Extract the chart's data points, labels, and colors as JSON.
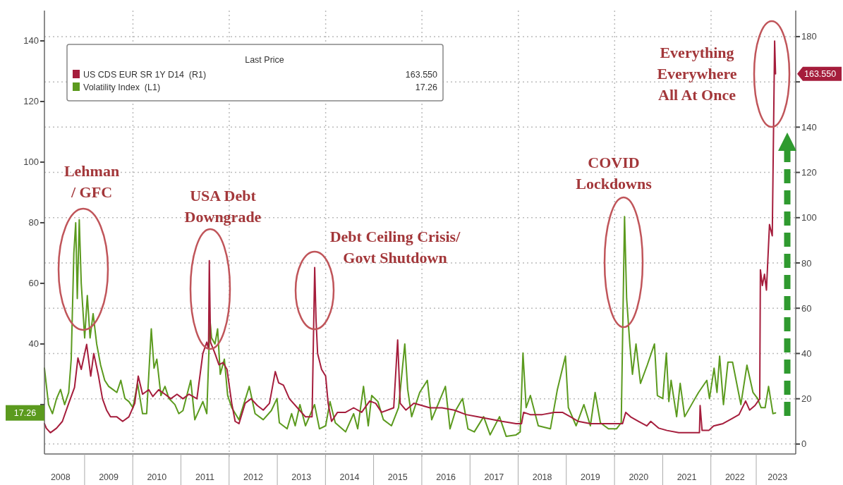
{
  "chart_data": {
    "type": "line",
    "legend_title": "Last Price",
    "legend": "top left",
    "grid": true,
    "xlim": [
      "2008-03-01",
      "2023-10-05"
    ],
    "xticks": [
      {
        "value": "2008-07-01",
        "label": "2008"
      },
      {
        "value": "2009-07-01",
        "label": "2009"
      },
      {
        "value": "2010-01-01",
        "label": null
      },
      {
        "value": "2010-07-01",
        "label": "2010"
      },
      {
        "value": "2011-07-01",
        "label": "2011"
      },
      {
        "value": "2012-01-01",
        "label": null
      },
      {
        "value": "2012-07-01",
        "label": "2012"
      },
      {
        "value": "2013-07-01",
        "label": "2013"
      },
      {
        "value": "2014-01-01",
        "label": null
      },
      {
        "value": "2014-07-01",
        "label": "2014"
      },
      {
        "value": "2015-07-01",
        "label": "2015"
      },
      {
        "value": "2016-01-01",
        "label": null
      },
      {
        "value": "2016-07-01",
        "label": "2016"
      },
      {
        "value": "2017-07-01",
        "label": "2017"
      },
      {
        "value": "2018-01-01",
        "label": null
      },
      {
        "value": "2018-07-01",
        "label": "2018"
      },
      {
        "value": "2019-07-01",
        "label": "2019"
      },
      {
        "value": "2020-01-01",
        "label": null
      },
      {
        "value": "2020-07-01",
        "label": "2020"
      },
      {
        "value": "2021-07-01",
        "label": "2021"
      },
      {
        "value": "2022-01-01",
        "label": null
      },
      {
        "value": "2022-07-01",
        "label": "2022"
      },
      {
        "value": "2023-05-20",
        "label": "2023"
      }
    ],
    "ylim": [
      3.7,
      150
    ],
    "yticks": [
      {
        "value": 20,
        "label": null
      },
      40,
      60,
      80,
      100,
      120,
      140
    ],
    "y2lim": [
      -4.4,
      191.5
    ],
    "y2ticks": [
      0,
      20,
      40,
      60,
      80,
      100,
      120,
      140,
      {
        "value": 160,
        "label": null
      },
      180
    ],
    "annotations": [
      "Lehman\n/ GFC",
      "USA Debt\nDowngrade",
      "Debt Ceiling Crisis/\nGovt Shutdown",
      "COVID\nLockdowns",
      "Everything\nEverywhere\nAll At Once",
      "163.550",
      "17.26"
    ],
    "series": [
      {
        "name": "US CDS EUR SR 1Y D14  (R1)",
        "color": "#a51d3c",
        "axis": "y2",
        "x": [
          "2008-03-01",
          "2008-03-15",
          "2008-04-15",
          "2008-06-01",
          "2008-07-15",
          "2008-09-01",
          "2008-10-15",
          "2008-11-10",
          "2008-12-05",
          "2009-01-15",
          "2009-02-15",
          "2009-03-10",
          "2009-04-15",
          "2009-05-15",
          "2009-06-15",
          "2009-07-15",
          "2009-09-01",
          "2009-10-15",
          "2009-12-01",
          "2010-01-15",
          "2010-02-10",
          "2010-03-15",
          "2010-05-01",
          "2010-06-01",
          "2010-07-15",
          "2010-09-01",
          "2010-10-15",
          "2010-12-01",
          "2011-01-15",
          "2011-03-01",
          "2011-05-01",
          "2011-06-15",
          "2011-07-15",
          "2011-07-28",
          "2011-08-03",
          "2011-08-12",
          "2011-09-15",
          "2011-10-15",
          "2011-11-15",
          "2011-12-15",
          "2012-01-20",
          "2012-02-15",
          "2012-03-15",
          "2012-05-01",
          "2012-06-15",
          "2012-08-01",
          "2012-09-15",
          "2012-11-01",
          "2012-12-15",
          "2013-01-10",
          "2013-02-15",
          "2013-04-01",
          "2013-06-01",
          "2013-08-01",
          "2013-09-20",
          "2013-10-10",
          "2013-10-20",
          "2013-11-01",
          "2013-12-01",
          "2014-01-01",
          "2014-01-20",
          "2014-02-15",
          "2014-04-01",
          "2014-06-01",
          "2014-08-01",
          "2014-10-01",
          "2014-12-01",
          "2015-01-15",
          "2015-03-01",
          "2015-06-01",
          "2015-07-01",
          "2015-07-20",
          "2015-09-01",
          "2015-11-01",
          "2016-01-01",
          "2016-03-01",
          "2016-06-01",
          "2016-09-01",
          "2016-12-01",
          "2017-03-01",
          "2017-06-01",
          "2017-09-01",
          "2017-12-15",
          "2018-01-25",
          "2018-02-10",
          "2018-04-01",
          "2018-07-01",
          "2018-10-01",
          "2018-12-01",
          "2019-02-01",
          "2019-04-01",
          "2019-07-01",
          "2019-10-01",
          "2020-01-01",
          "2020-03-01",
          "2020-03-25",
          "2020-05-01",
          "2020-07-01",
          "2020-09-01",
          "2020-10-01",
          "2020-12-01",
          "2021-02-01",
          "2021-05-01",
          "2021-08-01",
          "2021-10-05",
          "2021-10-10",
          "2021-10-25",
          "2021-12-15",
          "2022-01-20",
          "2022-04-01",
          "2022-06-01",
          "2022-08-01",
          "2022-09-20",
          "2022-10-20",
          "2022-11-30",
          "2023-01-05",
          "2023-01-10",
          "2023-01-25",
          "2023-02-10",
          "2023-02-25",
          "2023-03-20",
          "2023-04-10",
          "2023-04-28",
          "2023-05-05"
        ],
        "values": [
          9,
          7,
          5,
          7,
          10,
          18,
          25,
          38,
          33,
          44,
          30,
          40,
          30,
          20,
          15,
          12,
          12,
          10,
          12,
          18,
          30,
          22,
          24,
          21,
          24,
          22,
          20,
          22,
          20,
          22,
          20,
          40,
          45,
          42,
          81,
          45,
          40,
          35,
          36,
          33,
          18,
          10,
          9,
          18,
          20,
          17,
          15,
          18,
          32,
          27,
          26,
          20,
          16,
          12,
          12,
          78,
          55,
          40,
          33,
          30,
          18,
          10,
          14,
          14,
          16,
          14,
          19,
          18,
          14,
          16,
          46,
          18,
          15,
          18,
          17,
          16,
          16,
          15,
          13,
          12,
          11,
          10,
          9,
          9,
          14,
          13,
          13,
          14,
          14,
          12,
          10,
          9,
          9,
          9,
          9,
          14,
          12,
          10,
          8,
          10,
          7,
          6,
          5,
          5,
          5,
          17,
          6,
          6,
          8,
          9,
          11,
          13,
          19,
          15,
          17,
          20,
          77,
          70,
          75,
          68,
          97,
          92,
          178,
          163.55
        ]
      },
      {
        "name": "Volatility Index  (L1)",
        "color": "#5b9a1e",
        "x": [
          "2008-03-01",
          "2008-04-01",
          "2008-05-01",
          "2008-06-01",
          "2008-07-01",
          "2008-08-01",
          "2008-09-01",
          "2008-09-20",
          "2008-10-10",
          "2008-10-24",
          "2008-11-05",
          "2008-11-20",
          "2008-12-05",
          "2008-12-31",
          "2009-01-20",
          "2009-02-10",
          "2009-03-05",
          "2009-04-01",
          "2009-05-01",
          "2009-06-01",
          "2009-07-01",
          "2009-08-01",
          "2009-09-01",
          "2009-10-01",
          "2009-11-01",
          "2009-12-01",
          "2010-01-01",
          "2010-02-05",
          "2010-03-15",
          "2010-04-15",
          "2010-05-20",
          "2010-06-10",
          "2010-07-01",
          "2010-08-01",
          "2010-09-01",
          "2010-10-01",
          "2010-11-15",
          "2010-12-15",
          "2011-01-15",
          "2011-03-15",
          "2011-04-15",
          "2011-06-15",
          "2011-07-15",
          "2011-08-08",
          "2011-08-20",
          "2011-09-15",
          "2011-10-05",
          "2011-10-25",
          "2011-11-25",
          "2011-12-20",
          "2012-01-20",
          "2012-03-15",
          "2012-06-01",
          "2012-07-15",
          "2012-09-15",
          "2012-11-15",
          "2012-12-28",
          "2013-01-15",
          "2013-03-15",
          "2013-04-18",
          "2013-05-15",
          "2013-06-20",
          "2013-08-01",
          "2013-10-09",
          "2013-11-15",
          "2014-01-01",
          "2014-02-03",
          "2014-03-15",
          "2014-06-01",
          "2014-08-01",
          "2014-09-01",
          "2014-10-15",
          "2014-11-20",
          "2014-12-16",
          "2015-02-01",
          "2015-03-15",
          "2015-05-15",
          "2015-07-08",
          "2015-08-24",
          "2015-09-15",
          "2015-10-15",
          "2015-12-15",
          "2016-02-11",
          "2016-03-15",
          "2016-06-27",
          "2016-08-01",
          "2016-09-12",
          "2016-11-04",
          "2016-12-15",
          "2017-02-01",
          "2017-04-13",
          "2017-06-01",
          "2017-08-11",
          "2017-10-01",
          "2017-12-15",
          "2018-01-15",
          "2018-02-05",
          "2018-03-01",
          "2018-04-02",
          "2018-06-01",
          "2018-09-01",
          "2018-10-24",
          "2018-12-24",
          "2019-01-15",
          "2019-03-15",
          "2019-05-13",
          "2019-07-01",
          "2019-08-06",
          "2019-09-15",
          "2019-11-15",
          "2020-01-15",
          "2020-02-20",
          "2020-03-16",
          "2020-04-01",
          "2020-04-25",
          "2020-05-15",
          "2020-06-11",
          "2020-07-15",
          "2020-09-04",
          "2020-10-29",
          "2020-11-20",
          "2020-12-31",
          "2021-01-27",
          "2021-02-15",
          "2021-03-04",
          "2021-04-15",
          "2021-05-12",
          "2021-06-15",
          "2021-08-19",
          "2021-09-28",
          "2021-11-30",
          "2021-12-20",
          "2022-01-24",
          "2022-02-15",
          "2022-03-07",
          "2022-04-05",
          "2022-05-09",
          "2022-06-13",
          "2022-08-15",
          "2022-09-30",
          "2022-11-15",
          "2022-12-20",
          "2023-01-15",
          "2023-02-15",
          "2023-03-13",
          "2023-04-15",
          "2023-05-05"
        ],
        "values": [
          32,
          20,
          17,
          22,
          25,
          20,
          24,
          35,
          70,
          80,
          55,
          81,
          60,
          42,
          56,
          42,
          50,
          40,
          33,
          28,
          26,
          25,
          24,
          28,
          22,
          21,
          19,
          27,
          17,
          17,
          45,
          32,
          35,
          23,
          26,
          22,
          20,
          17,
          18,
          28,
          15,
          21,
          17,
          48,
          42,
          40,
          45,
          30,
          35,
          23,
          19,
          15,
          26,
          17,
          15,
          18,
          22,
          14,
          12,
          17,
          13,
          20,
          13,
          20,
          12,
          13,
          21,
          14,
          11,
          17,
          12,
          26,
          13,
          23,
          21,
          15,
          13,
          19,
          40,
          25,
          16,
          24,
          28,
          15,
          26,
          12,
          18,
          22,
          12,
          11,
          16,
          10,
          16,
          9.5,
          10,
          11,
          37,
          19,
          23,
          13,
          12,
          25,
          36,
          19,
          13,
          20,
          13,
          24,
          14,
          12,
          12,
          14,
          82,
          55,
          40,
          30,
          40,
          27,
          33,
          40,
          23,
          22,
          37,
          21,
          28,
          16,
          27,
          16,
          21,
          24,
          28,
          22,
          32,
          24,
          36,
          20,
          34,
          34,
          20,
          33,
          24,
          22,
          19,
          19,
          26,
          17,
          17.26
        ]
      }
    ]
  }
}
